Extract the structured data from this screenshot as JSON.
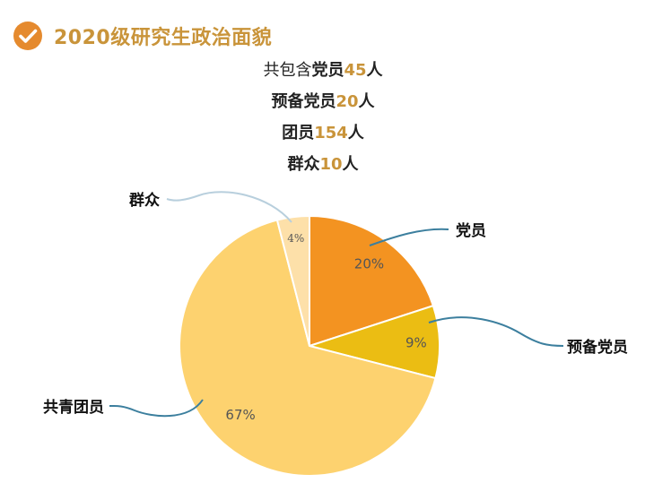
{
  "header": {
    "title": "2020级研究生政治面貌",
    "icon": "check-circle-icon",
    "accent": "#e58a2e"
  },
  "summary": [
    {
      "prefix": "共包含",
      "label": "党员",
      "count": "45",
      "unit": "人"
    },
    {
      "prefix": "",
      "label": "预备党员",
      "count": "20",
      "unit": "人"
    },
    {
      "prefix": "",
      "label": "团员",
      "count": "154",
      "unit": "人"
    },
    {
      "prefix": "",
      "label": "群众",
      "count": "10",
      "unit": "人"
    }
  ],
  "chart_data": {
    "type": "pie",
    "categories": [
      "党员",
      "预备党员",
      "共青团员",
      "群众"
    ],
    "values": [
      20,
      9,
      67,
      4
    ],
    "labels": [
      "20%",
      "9%",
      "67%",
      "4%"
    ],
    "colors": [
      "#f39321",
      "#ebbd13",
      "#fdd26f",
      "#fde0a9"
    ],
    "leader_color": "#3c7f9e",
    "leader_color_light": "#b8cfdd",
    "legend": "callouts"
  }
}
